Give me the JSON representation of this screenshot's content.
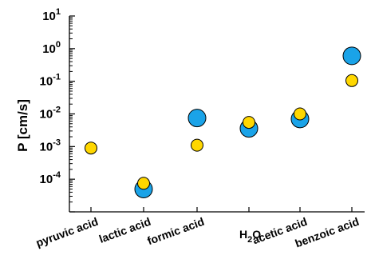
{
  "chart_data": {
    "type": "scatter",
    "categories": [
      "pyruvic acid",
      "lactic acid",
      "formic acid",
      "H2O",
      "acetic acid",
      "benzoic acid"
    ],
    "ylabel": "P [cm/s]",
    "yscale": "log",
    "ylim": [
      1e-05,
      10
    ],
    "grid": false,
    "legend": "none",
    "y_tick_labels": [
      {
        "base": "10",
        "exp": "1"
      },
      {
        "base": "10",
        "exp": "0"
      },
      {
        "base": "10",
        "exp": "-1"
      },
      {
        "base": "10",
        "exp": "-2"
      },
      {
        "base": "10",
        "exp": "-3"
      },
      {
        "base": "10",
        "exp": "-4"
      }
    ],
    "series": [
      {
        "color": "#1aa3e8",
        "values": [
          null,
          5e-05,
          0.0075,
          0.0036,
          0.007,
          0.6
        ]
      },
      {
        "color": "#ffd700",
        "values": [
          0.0009,
          7.5e-05,
          0.0011,
          0.0055,
          0.01,
          0.105
        ]
      }
    ]
  }
}
